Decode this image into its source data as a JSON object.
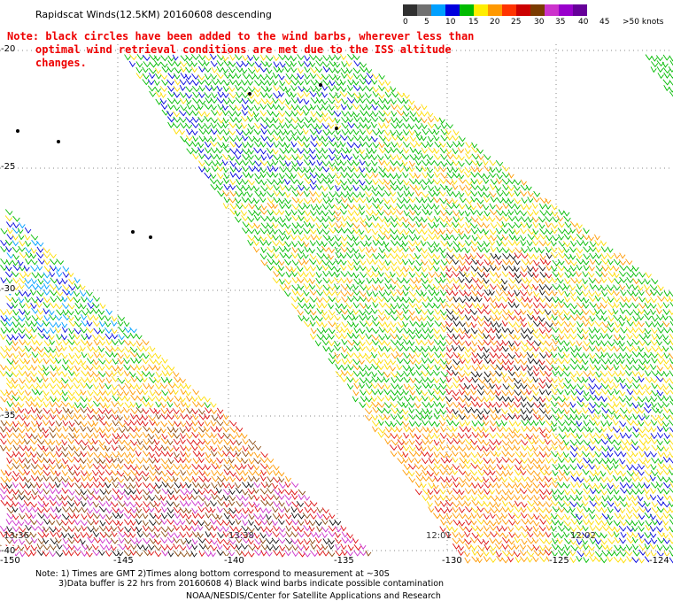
{
  "title": "Rapidscat Winds(12.5KM) 20160608 descending",
  "note_lines": [
    "Note: black circles have been added to the wind barbs, wherever less than",
    "optimal wind retrieval conditions are met due to the ISS altitude changes."
  ],
  "legend": {
    "labels": [
      "0",
      "5",
      "10",
      "15",
      "20",
      "25",
      "30",
      "35",
      "40",
      "45",
      ">50 knots"
    ],
    "colors": [
      "#303030",
      "#707070",
      "#00a0ff",
      "#0000dd",
      "#00bb00",
      "#ffee00",
      "#ff9900",
      "#ff3300",
      "#cc0000",
      "#7a3b00",
      "#cc33cc",
      "#9900cc",
      "#660099"
    ]
  },
  "axes": {
    "lat_labels": [
      "-20",
      "-25",
      "-30",
      "-35",
      "-40"
    ],
    "lon_labels": [
      "-150",
      "-145",
      "-140",
      "-135",
      "-130",
      "-125",
      "-124"
    ]
  },
  "pass_times": [
    "13:36",
    "13:38",
    "12:01",
    "12:02"
  ],
  "footer": {
    "line1": "Note: 1) Times are GMT 2)Times along bottom correspond to measurement at ~30S",
    "line2": "3)Data buffer is 22 hrs from 20160608 4) Black wind barbs indicate possible contamination",
    "line3": "NOAA/NESDIS/Center for Satellite Applications and Research"
  }
}
